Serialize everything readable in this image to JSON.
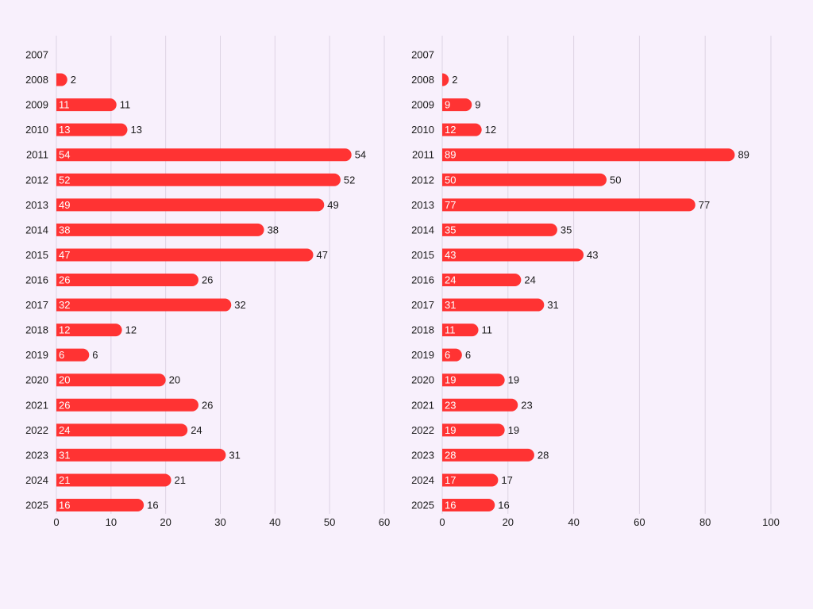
{
  "chart_data": [
    {
      "type": "bar",
      "orientation": "horizontal",
      "categories": [
        "2007",
        "2008",
        "2009",
        "2010",
        "2011",
        "2012",
        "2013",
        "2014",
        "2015",
        "2016",
        "2017",
        "2018",
        "2019",
        "2020",
        "2021",
        "2022",
        "2023",
        "2024",
        "2025"
      ],
      "values": [
        0,
        2,
        11,
        13,
        54,
        52,
        49,
        38,
        47,
        26,
        32,
        12,
        6,
        20,
        26,
        24,
        31,
        21,
        16
      ],
      "xlim": [
        0,
        60
      ],
      "xticks": [
        "0",
        "10",
        "20",
        "30",
        "40",
        "50",
        "60"
      ],
      "grid": true,
      "color": "#ff3333"
    },
    {
      "type": "bar",
      "orientation": "horizontal",
      "categories": [
        "2007",
        "2008",
        "2009",
        "2010",
        "2011",
        "2012",
        "2013",
        "2014",
        "2015",
        "2016",
        "2017",
        "2018",
        "2019",
        "2020",
        "2021",
        "2022",
        "2023",
        "2024",
        "2025"
      ],
      "values": [
        0,
        2,
        9,
        12,
        89,
        50,
        77,
        35,
        43,
        24,
        31,
        11,
        6,
        19,
        23,
        19,
        28,
        17,
        16
      ],
      "xlim": [
        0,
        100
      ],
      "xticks": [
        "0",
        "20",
        "40",
        "60",
        "80",
        "100"
      ],
      "grid": true,
      "color": "#ff3333"
    }
  ]
}
